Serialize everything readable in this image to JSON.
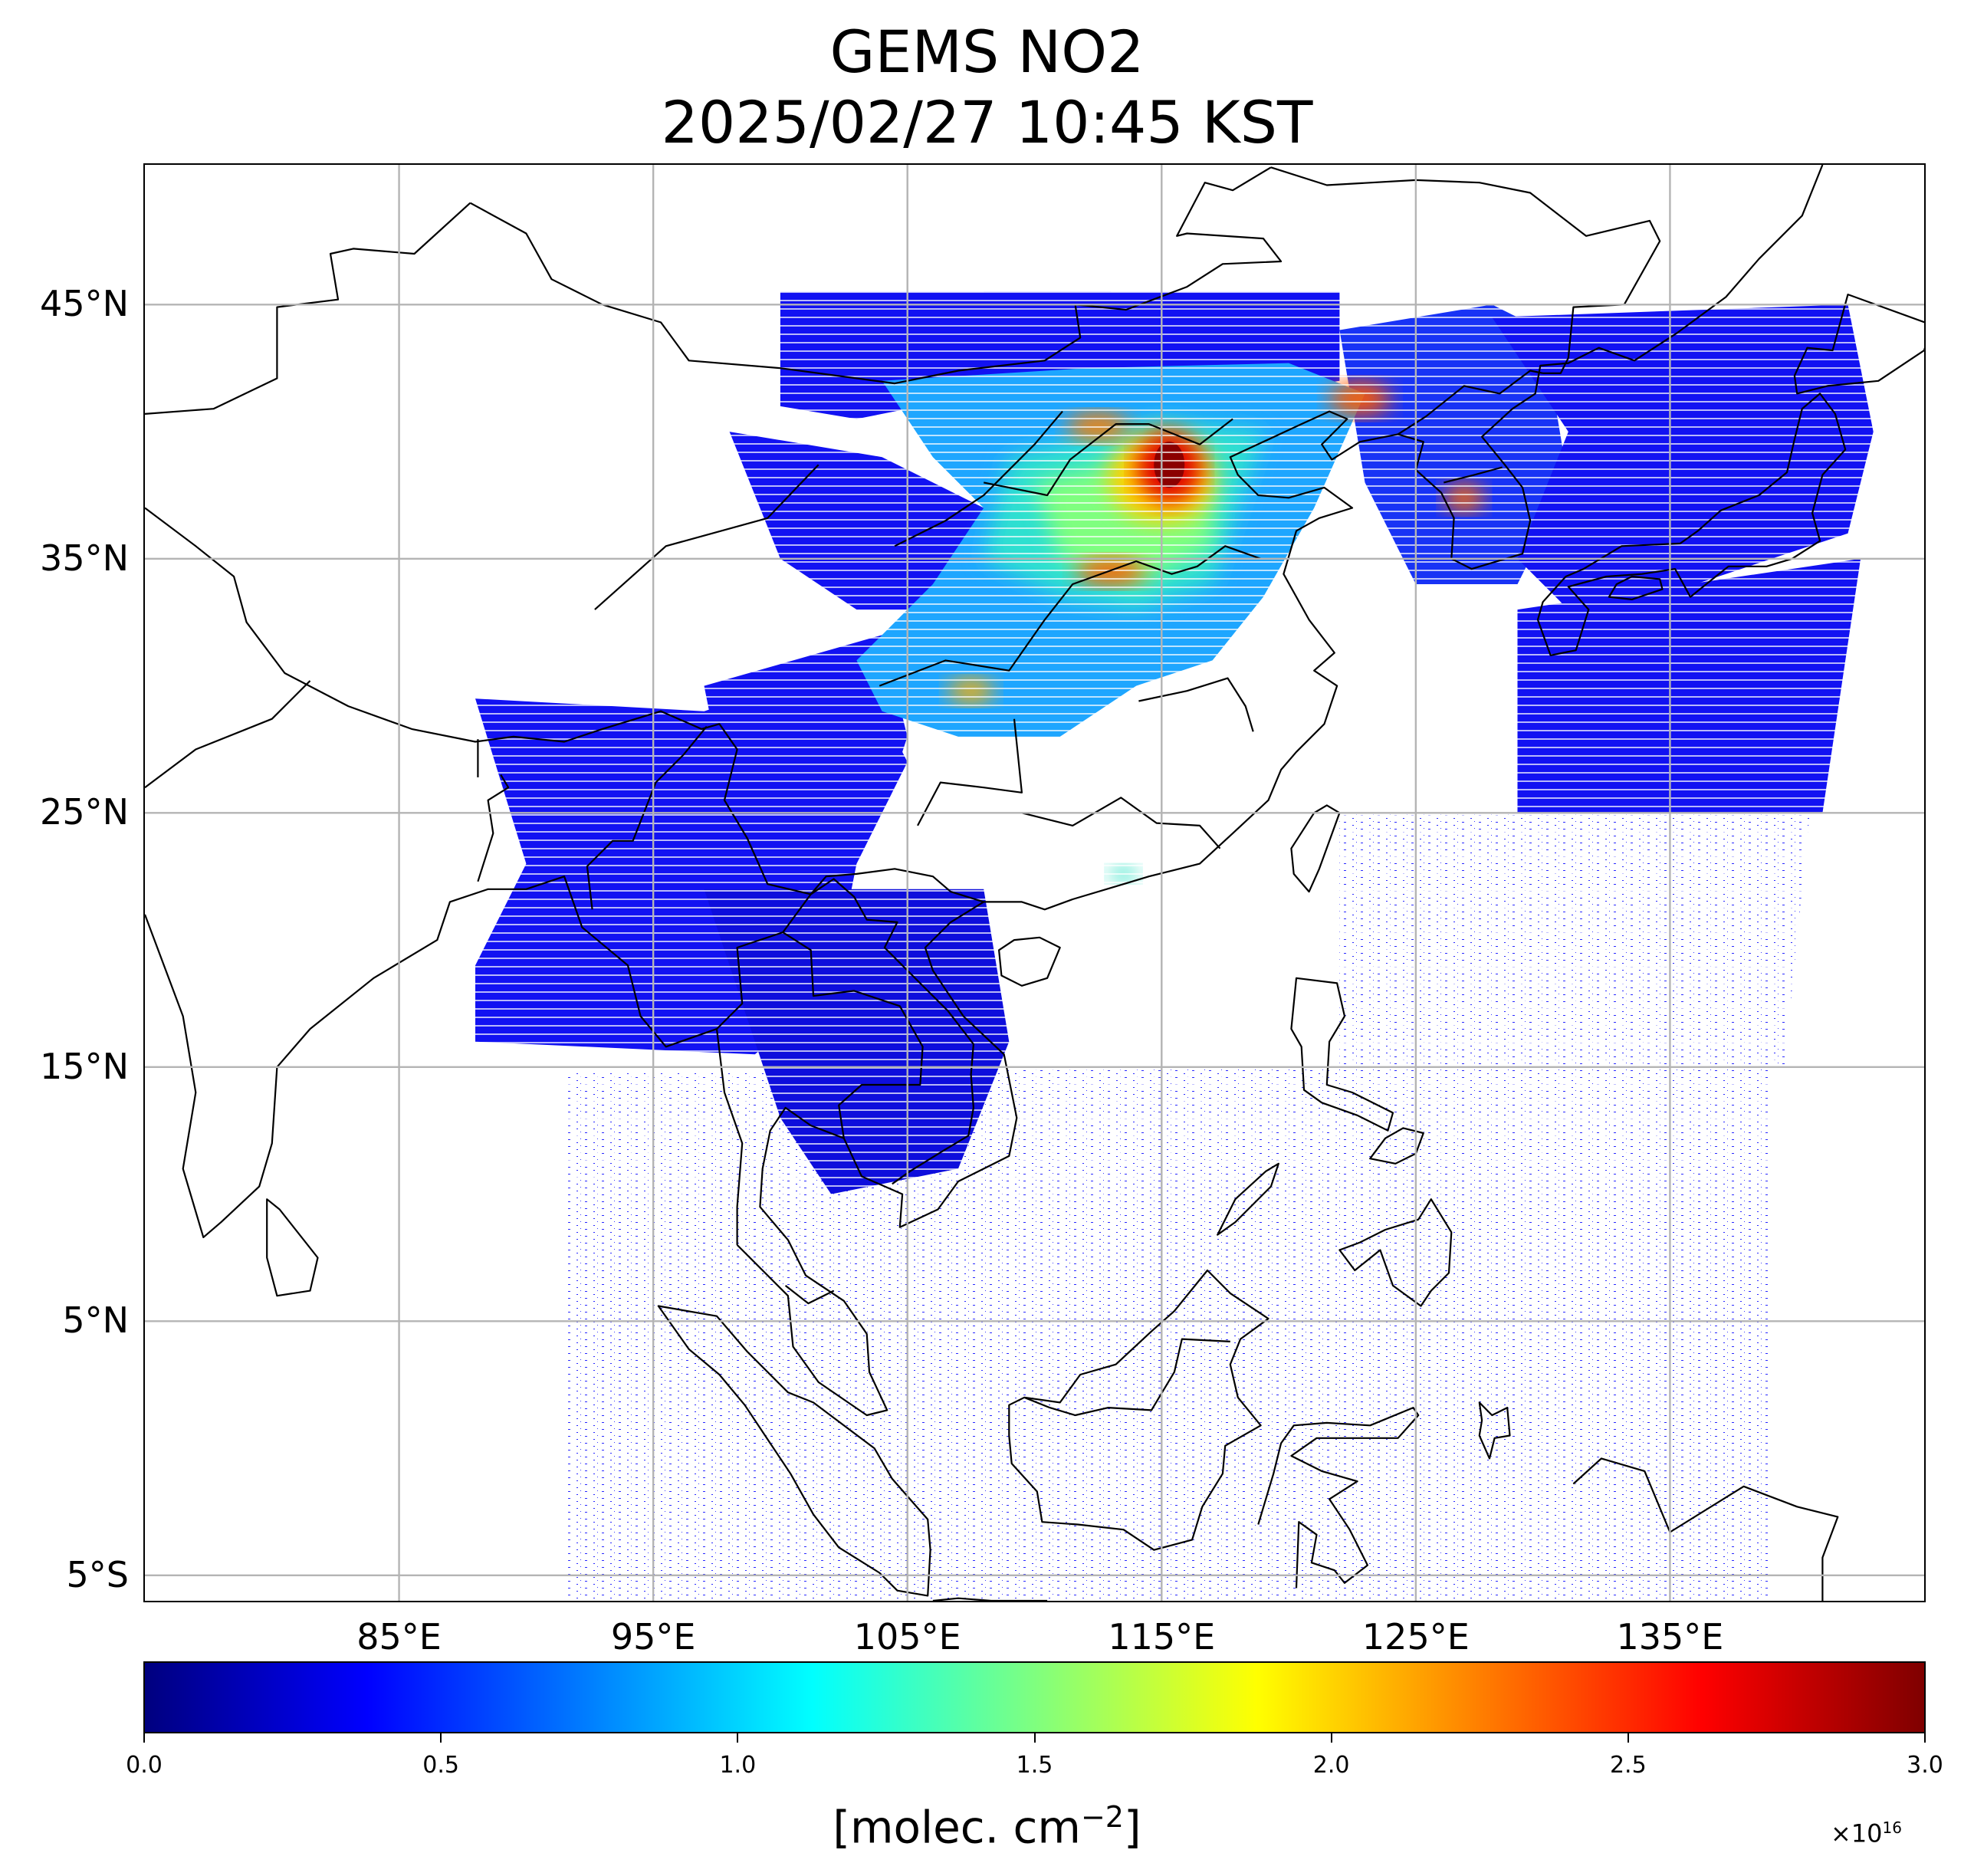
{
  "title": "GEMS NO2",
  "subtitle": "2025/02/27 10:45 KST",
  "map": {
    "type": "satellite NO2 column map",
    "extent": {
      "lon_min": 75,
      "lon_max": 145,
      "lat_min": -6,
      "lat_max": 50.5
    },
    "latitude_labels": [
      {
        "label": "45°N",
        "value": 45
      },
      {
        "label": "35°N",
        "value": 35
      },
      {
        "label": "25°N",
        "value": 25
      },
      {
        "label": "15°N",
        "value": 15
      },
      {
        "label": "5°N",
        "value": 5
      },
      {
        "label": "5°S",
        "value": -5
      }
    ],
    "longitude_labels": [
      {
        "label": "85°E",
        "value": 85
      },
      {
        "label": "95°E",
        "value": 95
      },
      {
        "label": "105°E",
        "value": 105
      },
      {
        "label": "115°E",
        "value": 115
      },
      {
        "label": "125°E",
        "value": 125
      },
      {
        "label": "135°E",
        "value": 135
      }
    ],
    "gridlines": true
  },
  "colorbar": {
    "colormap": "jet",
    "range": [
      0.0,
      3.0
    ],
    "ticks": [
      "0.0",
      "0.5",
      "1.0",
      "1.5",
      "2.0",
      "2.5",
      "3.0"
    ],
    "exponent_label": "×10",
    "exponent": "16",
    "unit_prefix": "[molec. cm",
    "unit_power": "−2",
    "unit_suffix": "]",
    "colors": [
      "#00007f",
      "#0000ff",
      "#007fff",
      "#00ffff",
      "#7fff7f",
      "#ffff00",
      "#ff7f00",
      "#ff0000",
      "#7f0000"
    ]
  }
}
